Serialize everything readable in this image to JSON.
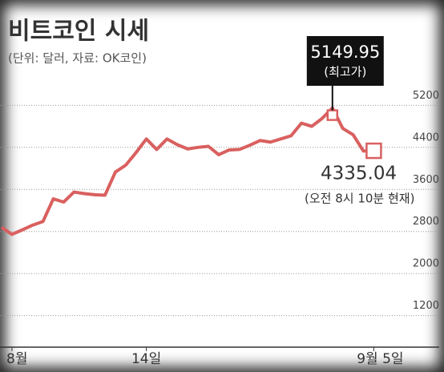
{
  "chart_data": {
    "type": "line",
    "title": "비트코인 시세",
    "subtitle": "(단위: 달러, 자료: OK코인)",
    "categories": [
      null,
      "8월",
      null,
      null,
      null,
      null,
      null,
      null,
      null,
      null,
      null,
      null,
      null,
      null,
      "14일",
      null,
      null,
      null,
      null,
      null,
      null,
      null,
      null,
      null,
      null,
      null,
      null,
      null,
      null,
      null,
      null,
      null,
      null,
      null,
      null,
      null,
      "9월 5일"
    ],
    "values": [
      2880,
      2745,
      2830,
      2920,
      2990,
      3420,
      3360,
      3550,
      3520,
      3500,
      3490,
      3930,
      4060,
      4300,
      4560,
      4360,
      4560,
      4450,
      4370,
      4400,
      4420,
      4260,
      4350,
      4360,
      4440,
      4530,
      4500,
      4560,
      4620,
      4860,
      4800,
      4950,
      5149.95,
      4760,
      4640,
      4330,
      4335.04
    ],
    "color": "#d9605f",
    "ylim": [
      600,
      5800
    ],
    "yticks": [
      1200,
      2000,
      2800,
      3600,
      4400,
      5200
    ],
    "grid": true,
    "highlights": [
      32,
      36
    ],
    "annotations": [
      "(최고가)",
      "(오전 8시 10분 현재)"
    ]
  }
}
